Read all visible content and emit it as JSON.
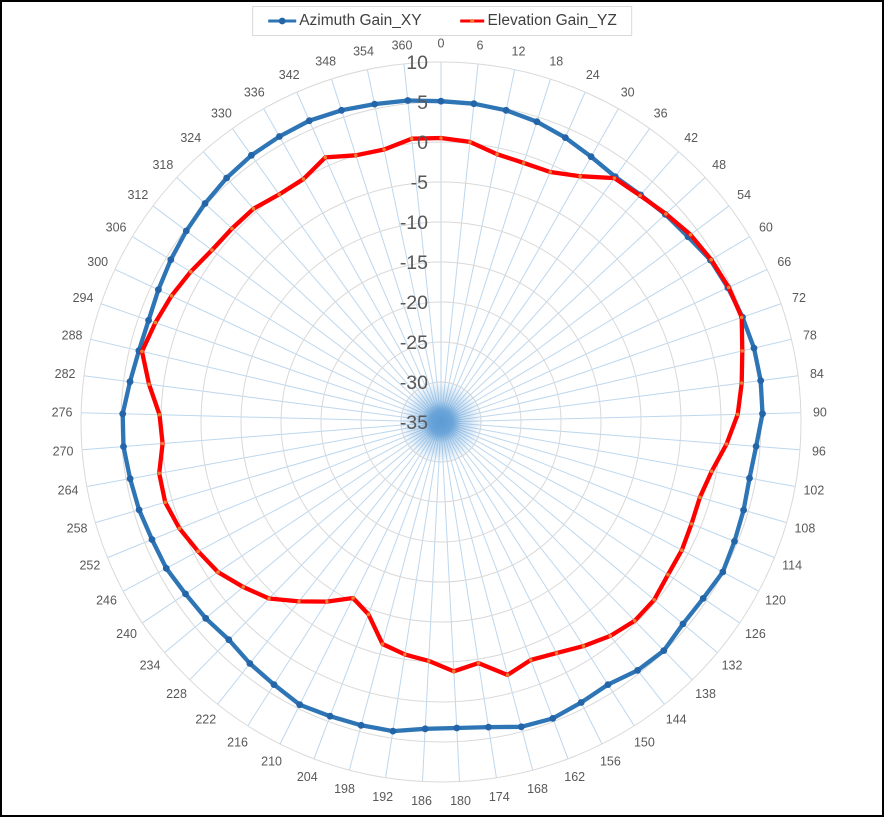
{
  "legend": {
    "items": [
      {
        "label": "Azimuth Gain_XY",
        "color": "#2E75B6",
        "marker_color": "#2465A8"
      },
      {
        "label": "Elevation Gain_YZ",
        "color": "#FF0000",
        "marker_color": "#ED7D31"
      }
    ]
  },
  "chart_data": {
    "type": "radar",
    "title": "",
    "legend_position": "top",
    "grid": true,
    "categories": [
      0,
      6,
      12,
      18,
      24,
      30,
      36,
      42,
      48,
      54,
      60,
      66,
      72,
      78,
      84,
      90,
      96,
      102,
      108,
      114,
      120,
      126,
      132,
      138,
      144,
      150,
      156,
      162,
      168,
      174,
      180,
      186,
      192,
      198,
      204,
      210,
      216,
      222,
      228,
      234,
      240,
      246,
      252,
      258,
      264,
      270,
      276,
      282,
      288,
      294,
      300,
      306,
      312,
      318,
      324,
      330,
      336,
      342,
      348,
      354,
      360
    ],
    "series": [
      {
        "name": "Azimuth Gain_XY",
        "color": "#2E75B6",
        "marker_color": "#2465A8",
        "marker_size": 3.4,
        "values": [
          5.1,
          5.0,
          4.8,
          4.4,
          3.8,
          3.1,
          2.6,
          2.8,
          3.2,
          3.6,
          4.3,
          4.6,
          4.9,
          5.2,
          5.3,
          5.2,
          4.5,
          4.2,
          4.4,
          4.6,
          4.9,
          4.5,
          4.4,
          4.9,
          4.6,
          3.9,
          4.2,
          4.6,
          4.4,
          3.6,
          3.3,
          3.4,
          4.1,
          4.2,
          4.3,
          4.5,
          3.9,
          3.5,
          3.0,
          3.3,
          3.5,
          3.9,
          4.0,
          4.3,
          4.5,
          4.8,
          4.8,
          4.2,
          3.8,
          3.7,
          4.0,
          4.4,
          4.8,
          5.2,
          5.6,
          5.9,
          6.0,
          6.1,
          5.9,
          5.6,
          5.4
        ]
      },
      {
        "name": "Elevation Gain_YZ",
        "color": "#FF0000",
        "marker_color": "#ED7D31",
        "marker_size": 1.8,
        "values": [
          0.5,
          0.2,
          -0.8,
          -1.0,
          -0.9,
          0.3,
          2.4,
          2.7,
          3.3,
          4.0,
          4.4,
          4.7,
          4.8,
          3.7,
          2.9,
          2.1,
          0.8,
          -0.6,
          -1.3,
          -1.2,
          -0.9,
          -0.8,
          -0.3,
          -0.3,
          -0.9,
          -1.8,
          -2.7,
          -3.2,
          -2.3,
          -4.5,
          -3.8,
          -5.1,
          -5.6,
          -6.3,
          -9.3,
          -10.4,
          -8.4,
          -6.4,
          -4.2,
          -2.8,
          -1.4,
          -0.6,
          0.3,
          0.9,
          0.8,
          -0.1,
          0.2,
          1.8,
          3.4,
          2.8,
          2.2,
          1.5,
          0.8,
          0.6,
          0.5,
          -0.1,
          -0.1,
          1.1,
          0.0,
          -0.2,
          0.6
        ]
      }
    ],
    "value_axis": {
      "min": -35,
      "max": 10,
      "step": 5,
      "tick_labels": [
        "10",
        "5",
        "0",
        "-5",
        "-10",
        "-15",
        "-20",
        "-25",
        "-30",
        "-35"
      ],
      "label_color": "#595959"
    },
    "category_axis": {
      "unit_degrees": 6,
      "label_color": "#595959"
    },
    "grid_style": {
      "spoke_color": "#BDD7EE",
      "ring_color": "#D9D9D9",
      "center_glow_color": "#5B9BD5"
    }
  }
}
